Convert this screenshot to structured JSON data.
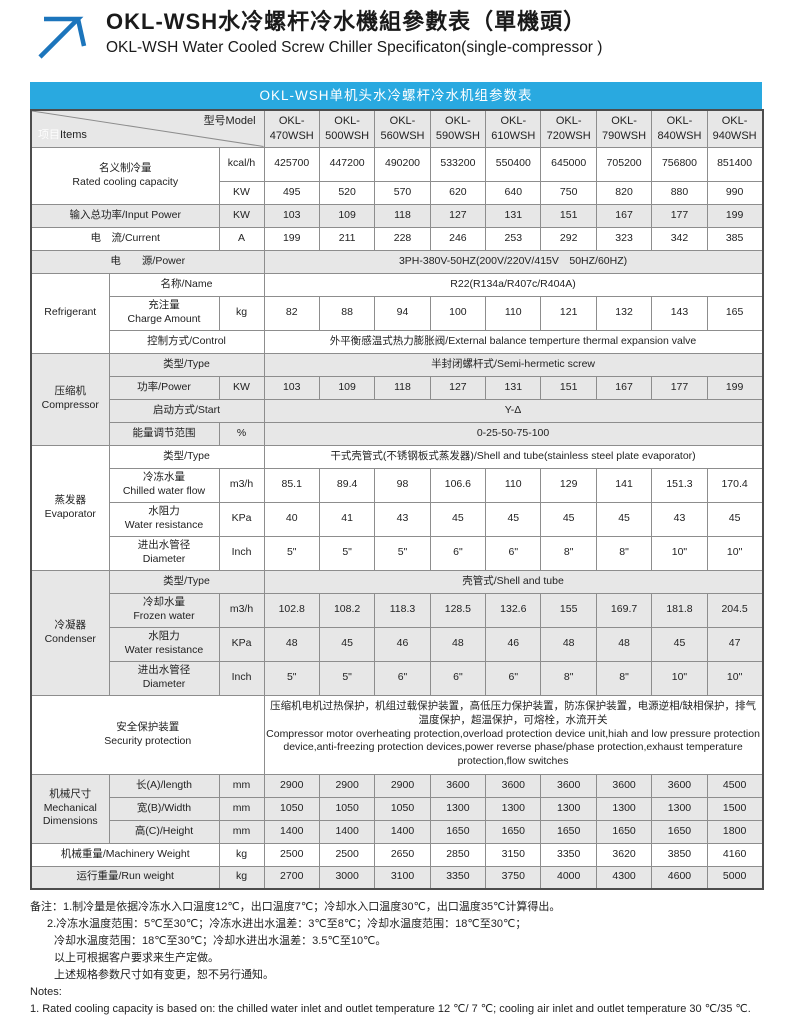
{
  "page": {
    "title_zh": "OKL-WSH水冷螺杆冷水機組參數表（單機頭）",
    "title_en": "OKL-WSH Water Cooled Screw Chiller Specificaton(single-compressor )",
    "banner": "OKL-WSH单机头水冷螺杆冷水机组参数表",
    "colors": {
      "banner_blue": "#29A9E0",
      "logo_blue": "#1C75BC",
      "row_shade": "#e7e7e7"
    }
  },
  "table": {
    "corner": {
      "items_zh": "项目",
      "items_en": "Items",
      "model": "型号Model"
    },
    "model_prefix": "OKL-",
    "models": [
      "470WSH",
      "500WSH",
      "560WSH",
      "590WSH",
      "610WSH",
      "720WSH",
      "790WSH",
      "840WSH",
      "940WSH"
    ],
    "rows": [
      {
        "id": "cooling-kcal",
        "shade": false,
        "label": {
          "lines": [
            "名义制冷量",
            "Rated cooling capacity"
          ],
          "cols": 2,
          "rows": 2
        },
        "unit": "kcal/h",
        "values": [
          "425700",
          "447200",
          "490200",
          "533200",
          "550400",
          "645000",
          "705200",
          "756800",
          "851400"
        ]
      },
      {
        "id": "cooling-kw",
        "shade": false,
        "unit": "KW",
        "values": [
          "495",
          "520",
          "570",
          "620",
          "640",
          "750",
          "820",
          "880",
          "990"
        ]
      },
      {
        "id": "input-power",
        "shade": true,
        "label": {
          "lines": [
            "输入总功率/Input Power"
          ],
          "cols": 2
        },
        "unit": "KW",
        "values": [
          "103",
          "109",
          "118",
          "127",
          "131",
          "151",
          "167",
          "177",
          "199"
        ]
      },
      {
        "id": "current",
        "shade": false,
        "label": {
          "lines": [
            "电　流/Current"
          ],
          "cols": 2
        },
        "unit": "A",
        "values": [
          "199",
          "211",
          "228",
          "246",
          "253",
          "292",
          "323",
          "342",
          "385"
        ]
      },
      {
        "id": "power-supply",
        "shade": true,
        "label": {
          "lines": [
            "电　　源/Power"
          ],
          "cols": 3
        },
        "span": [
          "3PH-380V-50HZ(200V/220V/415V　50HZ/60HZ)"
        ]
      },
      {
        "id": "refrigerant-name",
        "shade": false,
        "section": {
          "lines": [
            "Refrigerant"
          ],
          "rows": 3
        },
        "label": {
          "lines": [
            "名称/Name"
          ],
          "cols": 2
        },
        "span": [
          "R22(R134a/R407c/R404A)"
        ]
      },
      {
        "id": "refrigerant-charge",
        "shade": false,
        "label": {
          "lines": [
            "充注量",
            "Charge Amount"
          ]
        },
        "unit": "kg",
        "values": [
          "82",
          "88",
          "94",
          "100",
          "110",
          "121",
          "132",
          "143",
          "165"
        ]
      },
      {
        "id": "refrigerant-control",
        "shade": false,
        "label": {
          "lines": [
            "控制方式/Control"
          ],
          "cols": 2
        },
        "span": [
          "外平衡感温式热力膨胀阀/External balance temperture thermal expansion valve"
        ]
      },
      {
        "id": "compressor-type",
        "shade": true,
        "section": {
          "lines": [
            "压缩机",
            "Compressor"
          ],
          "rows": 4
        },
        "label": {
          "lines": [
            "类型/Type"
          ],
          "cols": 2
        },
        "span": [
          "半封闭螺杆式/Semi-hermetic screw"
        ]
      },
      {
        "id": "compressor-power",
        "shade": true,
        "label": {
          "lines": [
            "功率/Power"
          ]
        },
        "unit": "KW",
        "values": [
          "103",
          "109",
          "118",
          "127",
          "131",
          "151",
          "167",
          "177",
          "199"
        ]
      },
      {
        "id": "compressor-start",
        "shade": true,
        "label": {
          "lines": [
            "启动方式/Start"
          ],
          "cols": 2
        },
        "span": [
          "Y-Δ"
        ]
      },
      {
        "id": "compressor-capacity-range",
        "shade": true,
        "label": {
          "lines": [
            "能量调节范围"
          ]
        },
        "unit": "%",
        "span": [
          "0-25-50-75-100"
        ]
      },
      {
        "id": "evaporator-type",
        "shade": false,
        "section": {
          "lines": [
            "蒸发器",
            "Evaporator"
          ],
          "rows": 4
        },
        "label": {
          "lines": [
            "类型/Type"
          ],
          "cols": 2
        },
        "span": [
          "干式壳管式(不锈钢板式蒸发器)/Shell and tube(stainless steel plate evaporator)"
        ]
      },
      {
        "id": "evaporator-flow",
        "shade": false,
        "label": {
          "lines": [
            "冷冻水量",
            "Chilled water flow"
          ]
        },
        "unit": "m3/h",
        "values": [
          "85.1",
          "89.4",
          "98",
          "106.6",
          "110",
          "129",
          "141",
          "151.3",
          "170.4"
        ]
      },
      {
        "id": "evaporator-resistance",
        "shade": false,
        "label": {
          "lines": [
            "水阻力",
            "Water resistance"
          ]
        },
        "unit": "KPa",
        "values": [
          "40",
          "41",
          "43",
          "45",
          "45",
          "45",
          "45",
          "43",
          "45"
        ]
      },
      {
        "id": "evaporator-diameter",
        "shade": false,
        "label": {
          "lines": [
            "进出水管径",
            "Diameter"
          ]
        },
        "unit": "Inch",
        "values": [
          "5\"",
          "5\"",
          "5\"",
          "6\"",
          "6\"",
          "8\"",
          "8\"",
          "10\"",
          "10\""
        ]
      },
      {
        "id": "condenser-type",
        "shade": true,
        "section": {
          "lines": [
            "冷凝器",
            "Condenser"
          ],
          "rows": 4
        },
        "label": {
          "lines": [
            "类型/Type"
          ],
          "cols": 2
        },
        "span": [
          "壳管式/Shell and tube"
        ]
      },
      {
        "id": "condenser-flow",
        "shade": true,
        "label": {
          "lines": [
            "冷却水量",
            "Frozen water"
          ]
        },
        "unit": "m3/h",
        "values": [
          "102.8",
          "108.2",
          "118.3",
          "128.5",
          "132.6",
          "155",
          "169.7",
          "181.8",
          "204.5"
        ]
      },
      {
        "id": "condenser-resistance",
        "shade": true,
        "label": {
          "lines": [
            "水阻力",
            "Water resistance"
          ]
        },
        "unit": "KPa",
        "values": [
          "48",
          "45",
          "46",
          "48",
          "46",
          "48",
          "48",
          "45",
          "47"
        ]
      },
      {
        "id": "condenser-diameter",
        "shade": true,
        "label": {
          "lines": [
            "进出水管径",
            "Diameter"
          ]
        },
        "unit": "Inch",
        "values": [
          "5\"",
          "5\"",
          "6\"",
          "6\"",
          "6\"",
          "8\"",
          "8\"",
          "10\"",
          "10\""
        ]
      },
      {
        "id": "security-protection",
        "shade": false,
        "label": {
          "lines": [
            "安全保护装置",
            "Security protection"
          ],
          "cols": 3
        },
        "span": [
          "压缩机电机过热保护，机组过载保护装置，高低压力保护装置，防冻保护装置，电源逆相/缺相保护，排气温度保护，超温保护，可熔栓，水流开关",
          "Compressor motor overheating protection,overload protection device unit,hiah and low pressure protection device,anti-freezing protection devices,power reverse phase/phase protection,exhaust temperature protection,flow switches"
        ],
        "span_left": true
      },
      {
        "id": "dimension-length",
        "shade": true,
        "section": {
          "lines": [
            "机械尺寸",
            "Mechanical",
            "Dimensions"
          ],
          "rows": 3
        },
        "label": {
          "lines": [
            "长(A)/length"
          ]
        },
        "unit": "mm",
        "values": [
          "2900",
          "2900",
          "2900",
          "3600",
          "3600",
          "3600",
          "3600",
          "3600",
          "4500"
        ]
      },
      {
        "id": "dimension-width",
        "shade": true,
        "label": {
          "lines": [
            "宽(B)/Width"
          ]
        },
        "unit": "mm",
        "values": [
          "1050",
          "1050",
          "1050",
          "1300",
          "1300",
          "1300",
          "1300",
          "1300",
          "1500"
        ]
      },
      {
        "id": "dimension-height",
        "shade": true,
        "label": {
          "lines": [
            "高(C)/Height"
          ]
        },
        "unit": "mm",
        "values": [
          "1400",
          "1400",
          "1400",
          "1650",
          "1650",
          "1650",
          "1650",
          "1650",
          "1800"
        ]
      },
      {
        "id": "machinery-weight",
        "shade": false,
        "label": {
          "lines": [
            "机械重量/Machinery Weight"
          ],
          "cols": 2
        },
        "unit": "kg",
        "values": [
          "2500",
          "2500",
          "2650",
          "2850",
          "3150",
          "3350",
          "3620",
          "3850",
          "4160"
        ]
      },
      {
        "id": "run-weight",
        "shade": true,
        "label": {
          "lines": [
            "运行重量/Run weight"
          ],
          "cols": 2
        },
        "unit": "kg",
        "values": [
          "2700",
          "3000",
          "3100",
          "3350",
          "3750",
          "4000",
          "4300",
          "4600",
          "5000"
        ]
      }
    ]
  },
  "notes": {
    "zh": [
      "备注：1.制冷量是依据冷冻水入口温度12℃，出口温度7℃；冷却水入口温度30℃，出口温度35℃计算得出。",
      "2.冷冻水温度范围：5℃至30℃；冷冻水进出水温差：3℃至8℃；冷却水温度范围：18℃至30℃；",
      "冷却水温度范围：18℃至30℃；冷却水进出水温差：3.5℃至10℃。",
      "以上可根据客户要求来生产定做。",
      "上述规格参数尺寸如有变更，恕不另行通知。"
    ],
    "en_title": "Notes:",
    "en": [
      "1. Rated cooling capacity is based on: the chilled water inlet and outlet temperature 12 ℃/ 7 ℃; cooling air inlet and outlet temperature 30 ℃/35 ℃."
    ]
  }
}
